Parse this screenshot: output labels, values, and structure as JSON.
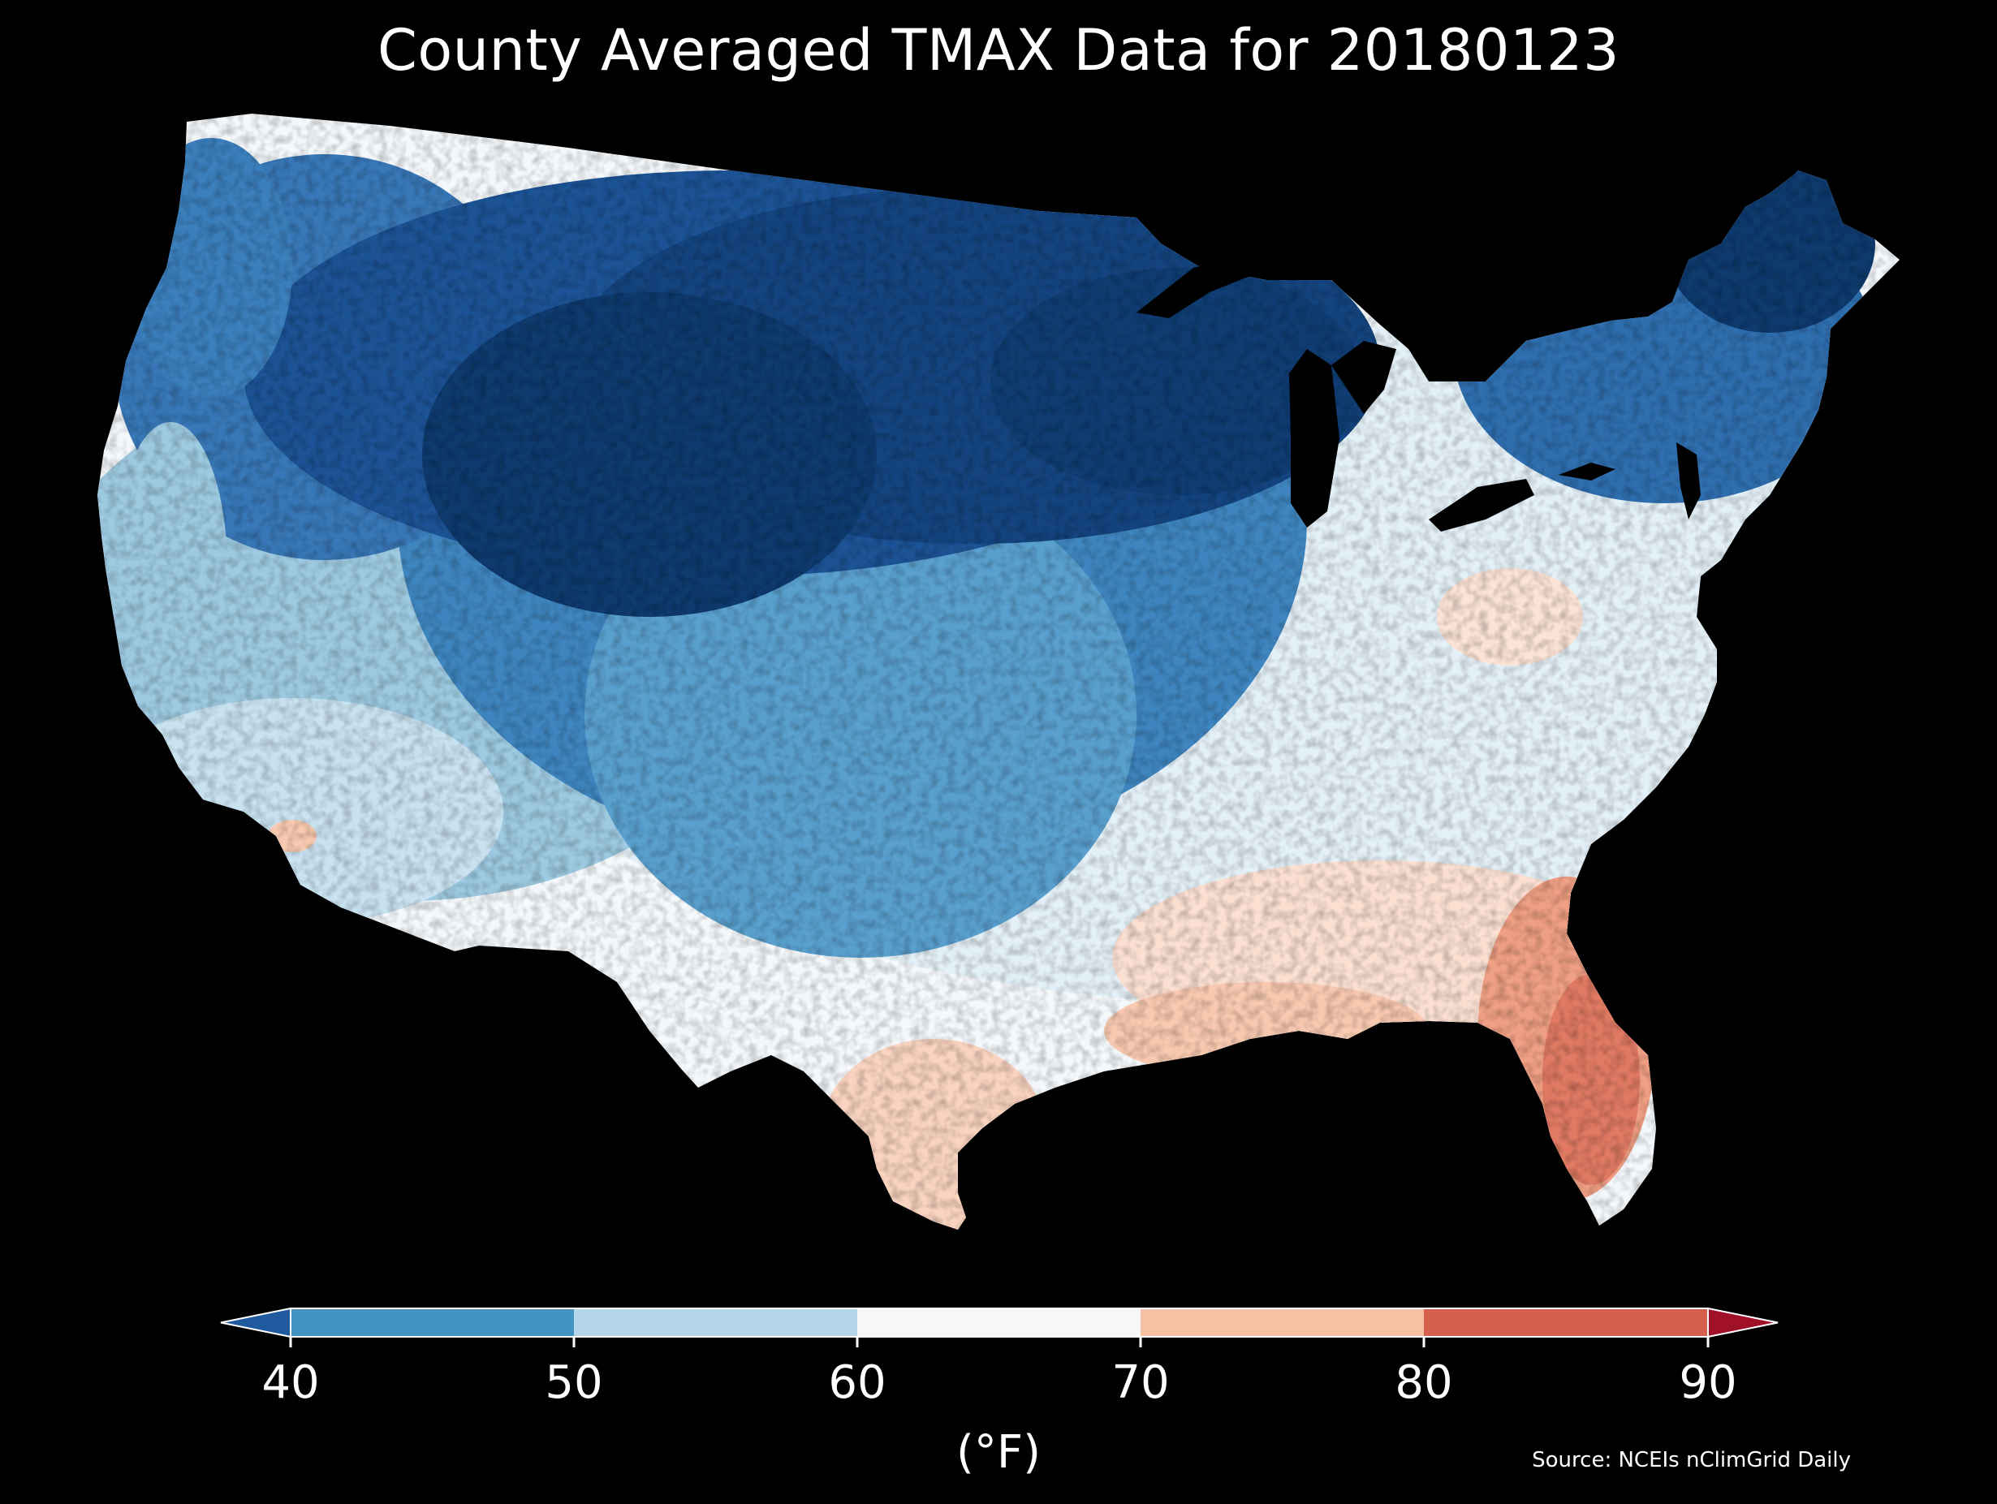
{
  "title": "County Averaged TMAX Data for 20180123",
  "colorbar": {
    "ticks": [
      "40",
      "50",
      "60",
      "70",
      "80",
      "90"
    ],
    "unit": "(°F)",
    "bins": [
      {
        "range": "<40",
        "color": "#1f5a9e"
      },
      {
        "range": "40-50",
        "color": "#4393c3"
      },
      {
        "range": "50-60",
        "color": "#b3d6e9"
      },
      {
        "range": "60-70",
        "color": "#f7f7f7"
      },
      {
        "range": "70-80",
        "color": "#f8c0a3"
      },
      {
        "range": "80-90",
        "color": "#d6604d"
      },
      {
        "range": ">90",
        "color": "#a01028"
      }
    ]
  },
  "map": {
    "region": "contiguous United States",
    "background": "#000000",
    "regional_temps": [
      {
        "region": "Northern Rockies / Northern Plains / Upper Midwest",
        "range": "<40"
      },
      {
        "region": "Northeast / New England",
        "range": "<40"
      },
      {
        "region": "Pacific Northwest / Great Basin",
        "range": "40-50"
      },
      {
        "region": "Southern Rockies / Southern Plains panhandle",
        "range": "40-50"
      },
      {
        "region": "California coast / Southwest desert",
        "range": "50-60"
      },
      {
        "region": "Ohio Valley / Mid-Atlantic / Central Texas",
        "range": "60-70"
      },
      {
        "region": "Gulf Coast / Southeast / South Texas",
        "range": "70-80"
      },
      {
        "region": "Florida peninsula",
        "range": "80-90"
      }
    ]
  },
  "source": "Source: NCEIs nClimGrid Daily"
}
